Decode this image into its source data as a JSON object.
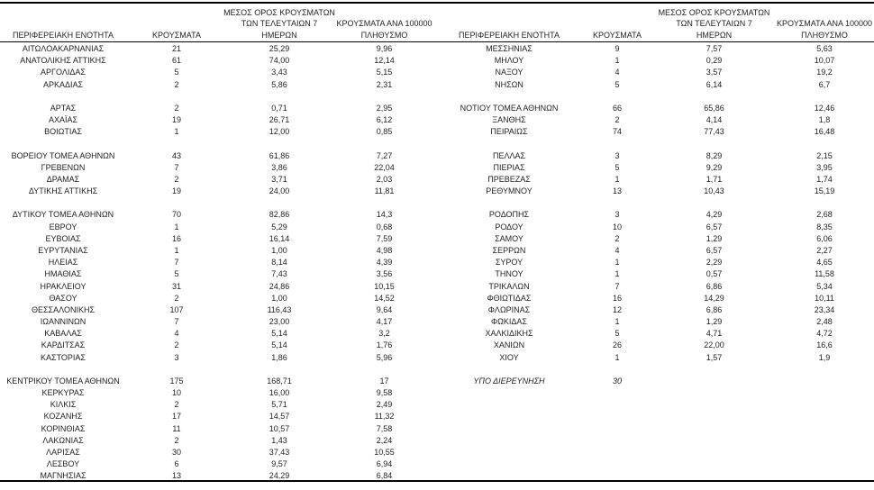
{
  "page": {
    "background": "#ffffff",
    "text_color": "#1f1f1f",
    "rule_color": "#000000"
  },
  "table": {
    "header": {
      "region": "ΠΕΡΙΦΕΡΕΙΑΚΗ ΕΝΟΤΗΤΑ",
      "cases": "ΚΡΟΥΣΜΑΤΑ",
      "avg7_lines": [
        "ΜΕΣΟΣ ΟΡΟΣ ΚΡΟΥΣΜΑΤΩΝ",
        "ΤΩΝ ΤΕΛΕΥΤΑΙΩΝ 7",
        "ΗΜΕΡΩΝ"
      ],
      "per100k_lines": [
        "ΚΡΟΥΣΜΑΤΑ ΑΝΑ 100000",
        "ΠΛΗΘΥΣΜΟ"
      ]
    },
    "left_rows": [
      {
        "cells": [
          "ΑΙΤΩΛΟΑΚΑΡΝΑΝΙΑΣ",
          "21",
          "25,29",
          "9,96"
        ]
      },
      {
        "cells": [
          "ΑΝΑΤΟΛΙΚΗΣ ΑΤΤΙΚΗΣ",
          "61",
          "74,00",
          "12,14"
        ]
      },
      {
        "cells": [
          "ΑΡΓΟΛΙΔΑΣ",
          "5",
          "3,43",
          "5,15"
        ]
      },
      {
        "cells": [
          "ΑΡΚΑΔΙΑΣ",
          "2",
          "5,86",
          "2,31"
        ]
      },
      {
        "blank": true
      },
      {
        "cells": [
          "ΑΡΤΑΣ",
          "2",
          "0,71",
          "2,95"
        ]
      },
      {
        "cells": [
          "ΑΧΑΪΑΣ",
          "19",
          "26,71",
          "6,12"
        ]
      },
      {
        "cells": [
          "ΒΟΙΩΤΙΑΣ",
          "1",
          "12,00",
          "0,85"
        ]
      },
      {
        "blank": true
      },
      {
        "cells": [
          "ΒΟΡΕΙΟΥ ΤΟΜΕΑ ΑΘΗΝΩΝ",
          "43",
          "61,86",
          "7,27"
        ]
      },
      {
        "cells": [
          "ΓΡΕΒΕΝΩΝ",
          "7",
          "3,86",
          "22,04"
        ]
      },
      {
        "cells": [
          "ΔΡΑΜΑΣ",
          "2",
          "3,71",
          "2,03"
        ]
      },
      {
        "cells": [
          "ΔΥΤΙΚΗΣ ΑΤΤΙΚΗΣ",
          "19",
          "24,00",
          "11,81"
        ]
      },
      {
        "blank": true
      },
      {
        "cells": [
          "ΔΥΤΙΚΟΥ ΤΟΜΕΑ ΑΘΗΝΩΝ",
          "70",
          "82,86",
          "14,3"
        ]
      },
      {
        "cells": [
          "ΕΒΡΟΥ",
          "1",
          "5,29",
          "0,68"
        ]
      },
      {
        "cells": [
          "ΕΥΒΟΙΑΣ",
          "16",
          "16,14",
          "7,59"
        ]
      },
      {
        "cells": [
          "ΕΥΡΥΤΑΝΙΑΣ",
          "1",
          "1,00",
          "4,98"
        ]
      },
      {
        "cells": [
          "ΗΛΕΙΑΣ",
          "7",
          "8,14",
          "4,39"
        ]
      },
      {
        "cells": [
          "ΗΜΑΘΙΑΣ",
          "5",
          "7,43",
          "3,56"
        ]
      },
      {
        "cells": [
          "ΗΡΑΚΛΕΙΟΥ",
          "31",
          "24,86",
          "10,15"
        ]
      },
      {
        "cells": [
          "ΘΑΣΟΥ",
          "2",
          "1,00",
          "14,52"
        ]
      },
      {
        "cells": [
          "ΘΕΣΣΑΛΟΝΙΚΗΣ",
          "107",
          "116,43",
          "9,64"
        ]
      },
      {
        "cells": [
          "ΙΩΑΝΝΙΝΩΝ",
          "7",
          "23,00",
          "4,17"
        ]
      },
      {
        "cells": [
          "ΚΑΒΑΛΑΣ",
          "4",
          "5,14",
          "3,2"
        ]
      },
      {
        "cells": [
          "ΚΑΡΔΙΤΣΑΣ",
          "2",
          "5,14",
          "1,76"
        ]
      },
      {
        "cells": [
          "ΚΑΣΤΟΡΙΑΣ",
          "3",
          "1,86",
          "5,96"
        ]
      },
      {
        "blank": true
      },
      {
        "cells": [
          "ΚΕΝΤΡΙΚΟΥ ΤΟΜΕΑ ΑΘΗΝΩΝ",
          "175",
          "168,71",
          "17"
        ]
      },
      {
        "cells": [
          "ΚΕΡΚΥΡΑΣ",
          "10",
          "16,00",
          "9,58"
        ]
      },
      {
        "cells": [
          "ΚΙΛΚΙΣ",
          "2",
          "5,71",
          "2,49"
        ]
      },
      {
        "cells": [
          "ΚΟΖΑΝΗΣ",
          "17",
          "14,57",
          "11,32"
        ]
      },
      {
        "cells": [
          "ΚΟΡΙΝΘΙΑΣ",
          "11",
          "10,57",
          "7,58"
        ]
      },
      {
        "cells": [
          "ΛΑΚΩΝΙΑΣ",
          "2",
          "1,43",
          "2,24"
        ]
      },
      {
        "cells": [
          "ΛΑΡΙΣΑΣ",
          "30",
          "37,43",
          "10,55"
        ]
      },
      {
        "cells": [
          "ΛΕΣΒΟΥ",
          "6",
          "9,57",
          "6,94"
        ]
      },
      {
        "cells": [
          "ΜΑΓΝΗΣΙΑΣ",
          "13",
          "24,29",
          "6,84"
        ]
      }
    ],
    "right_rows": [
      {
        "cells": [
          "ΜΕΣΣΗΝΙΑΣ",
          "9",
          "7,57",
          "5,63"
        ]
      },
      {
        "cells": [
          "ΜΗΛΟΥ",
          "1",
          "0,29",
          "10,07"
        ]
      },
      {
        "cells": [
          "ΝΑΞΟΥ",
          "4",
          "3,57",
          "19,2"
        ]
      },
      {
        "cells": [
          "ΝΗΣΩΝ",
          "5",
          "6,14",
          "6,7"
        ]
      },
      {
        "blank": true
      },
      {
        "cells": [
          "ΝΟΤΙΟΥ ΤΟΜΕΑ ΑΘΗΝΩΝ",
          "66",
          "65,86",
          "12,46"
        ]
      },
      {
        "cells": [
          "ΞΑΝΘΗΣ",
          "2",
          "4,14",
          "1,8"
        ]
      },
      {
        "cells": [
          "ΠΕΙΡΑΙΩΣ",
          "74",
          "77,43",
          "16,48"
        ]
      },
      {
        "blank": true
      },
      {
        "cells": [
          "ΠΕΛΛΑΣ",
          "3",
          "8,29",
          "2,15"
        ]
      },
      {
        "cells": [
          "ΠΙΕΡΙΑΣ",
          "5",
          "9,29",
          "3,95"
        ]
      },
      {
        "cells": [
          "ΠΡΕΒΕΖΑΣ",
          "1",
          "1,71",
          "1,74"
        ]
      },
      {
        "cells": [
          "ΡΕΘΥΜΝΟΥ",
          "13",
          "10,43",
          "15,19"
        ]
      },
      {
        "blank": true
      },
      {
        "cells": [
          "ΡΟΔΟΠΗΣ",
          "3",
          "4,29",
          "2,68"
        ]
      },
      {
        "cells": [
          "ΡΟΔΟΥ",
          "10",
          "6,57",
          "8,35"
        ]
      },
      {
        "cells": [
          "ΣΑΜΟΥ",
          "2",
          "1,29",
          "6,06"
        ]
      },
      {
        "cells": [
          "ΣΕΡΡΩΝ",
          "4",
          "6,57",
          "2,27"
        ]
      },
      {
        "cells": [
          "ΣΥΡΟΥ",
          "1",
          "2,29",
          "4,65"
        ]
      },
      {
        "cells": [
          "ΤΗΝΟΥ",
          "1",
          "0,57",
          "11,58"
        ]
      },
      {
        "cells": [
          "ΤΡΙΚΑΛΩΝ",
          "7",
          "6,86",
          "5,34"
        ]
      },
      {
        "cells": [
          "ΦΘΙΩΤΙΔΑΣ",
          "16",
          "14,29",
          "10,11"
        ]
      },
      {
        "cells": [
          "ΦΛΩΡΙΝΑΣ",
          "12",
          "6,86",
          "23,34"
        ]
      },
      {
        "cells": [
          "ΦΩΚΙΔΑΣ",
          "1",
          "1,29",
          "2,48"
        ]
      },
      {
        "cells": [
          "ΧΑΛΚΙΔΙΚΗΣ",
          "5",
          "4,71",
          "4,72"
        ]
      },
      {
        "cells": [
          "ΧΑΝΙΩΝ",
          "26",
          "22,00",
          "16,6"
        ]
      },
      {
        "cells": [
          "ΧΙΟΥ",
          "1",
          "1,57",
          "1,9"
        ]
      },
      {
        "blank": true
      },
      {
        "cells": [
          "ΥΠΟ ΔΙΕΡΕΥΝΗΣΗ",
          "30",
          "",
          ""
        ],
        "italic": true
      }
    ]
  }
}
